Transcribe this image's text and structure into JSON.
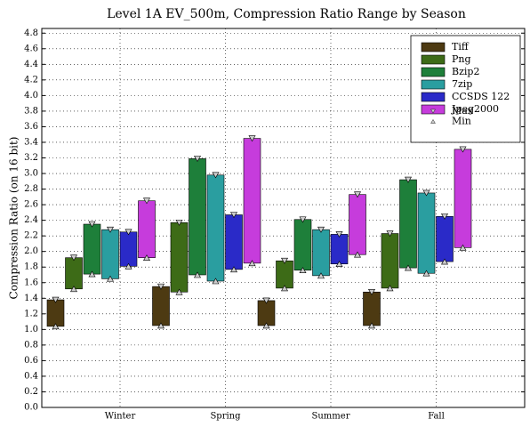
{
  "chart_data": {
    "type": "range-bar",
    "title": "Level 1A EV_500m, Compression Ratio Range by Season",
    "y_label": "Compression Ratio (on 16 bit)",
    "categories": [
      "Winter",
      "Spring",
      "Summer",
      "Fall"
    ],
    "series": [
      {
        "name": "Tiff",
        "color": "#4d3a12",
        "min": [
          1.04,
          1.05,
          1.05,
          1.05
        ],
        "max": [
          1.38,
          1.55,
          1.37,
          1.48
        ]
      },
      {
        "name": "Png",
        "color": "#3d6b17",
        "min": [
          1.52,
          1.48,
          1.53,
          1.53
        ],
        "max": [
          1.92,
          2.37,
          1.88,
          2.23
        ]
      },
      {
        "name": "Bzip2",
        "color": "#1e7f3a",
        "min": [
          1.71,
          1.7,
          1.76,
          1.79
        ],
        "max": [
          2.35,
          3.19,
          2.41,
          2.92
        ]
      },
      {
        "name": "7zip",
        "color": "#2a9ea0",
        "min": [
          1.65,
          1.62,
          1.69,
          1.72
        ],
        "max": [
          2.28,
          2.98,
          2.28,
          2.75
        ]
      },
      {
        "name": "CCSDS 122",
        "color": "#2a2ac8",
        "min": [
          1.81,
          1.77,
          1.84,
          1.87
        ],
        "max": [
          2.25,
          2.47,
          2.22,
          2.45
        ]
      },
      {
        "name": "Jpeg2000",
        "color": "#c63cdc",
        "min": [
          1.92,
          1.85,
          1.96,
          2.05
        ],
        "max": [
          2.65,
          3.45,
          2.73,
          3.31
        ]
      }
    ],
    "marker_legend": {
      "max": "Max",
      "min": "Min"
    },
    "ylim": [
      0,
      4.86
    ],
    "yticks": [
      {
        "value": 0,
        "label": "0.0"
      },
      0.2,
      0.4,
      0.6,
      0.8,
      {
        "value": 1,
        "label": "1.0"
      },
      1.2,
      1.4,
      1.6,
      1.8,
      {
        "value": 2,
        "label": "2.0"
      },
      2.2,
      2.4,
      2.6,
      2.8,
      {
        "value": 3,
        "label": "3.0"
      },
      3.2,
      3.4,
      3.6,
      3.8,
      {
        "value": 4,
        "label": "4.0"
      },
      4.2,
      4.4,
      4.6,
      4.8
    ],
    "grid": true,
    "legend": "upper right"
  }
}
